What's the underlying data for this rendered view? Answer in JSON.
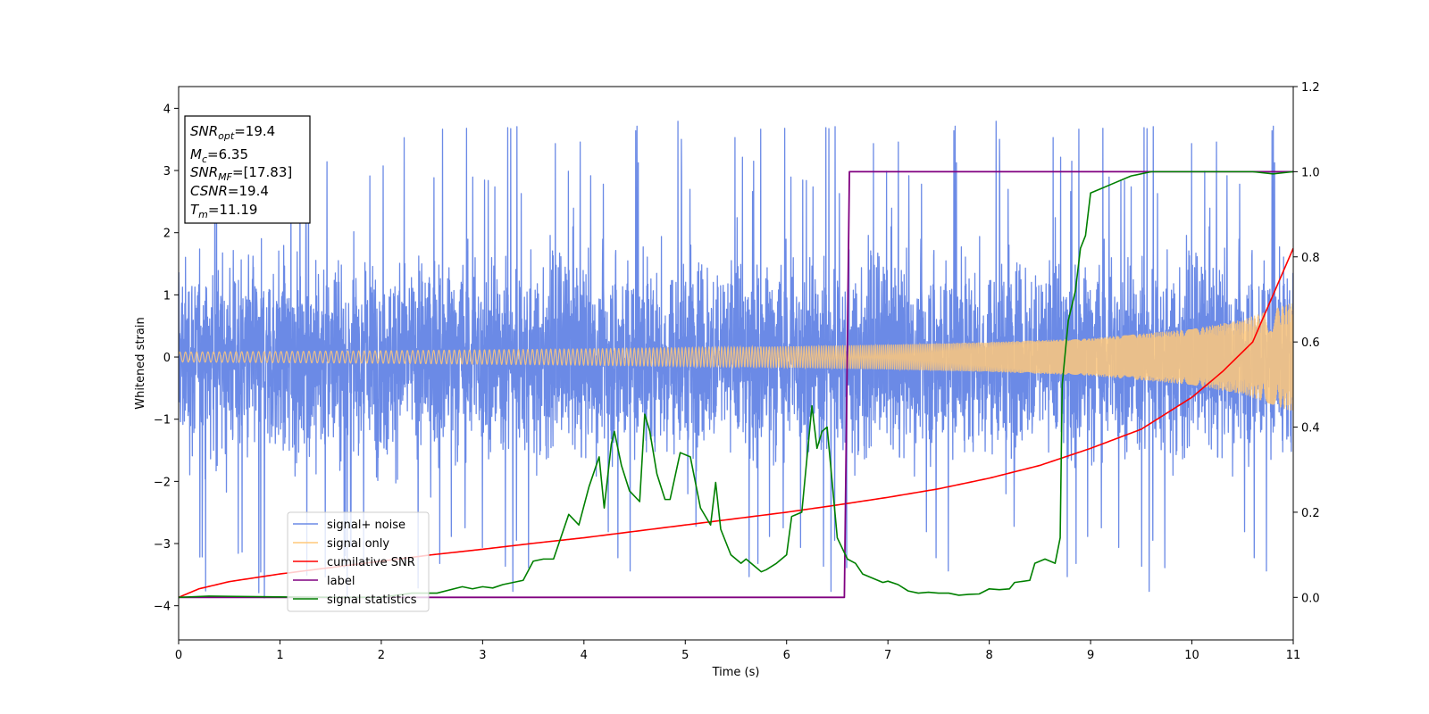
{
  "chart_data": {
    "type": "line",
    "xlabel": "Time (s)",
    "ylabel": "Whitened strain",
    "xlim": [
      0,
      11
    ],
    "ylim": [
      -4.55,
      4.35
    ],
    "y2lim": [
      -0.1,
      1.2
    ],
    "x_ticks": [
      "0",
      "1",
      "2",
      "3",
      "4",
      "5",
      "6",
      "7",
      "8",
      "9",
      "10",
      "11"
    ],
    "y_ticks": [
      "−4",
      "−3",
      "−2",
      "−1",
      "0",
      "1",
      "2",
      "3",
      "4"
    ],
    "y2_ticks": [
      "0.0",
      "0.2",
      "0.4",
      "0.6",
      "0.8",
      "1.0",
      "1.2"
    ],
    "grid": false,
    "legend_position": "lower-left",
    "annotation": {
      "lines": [
        {
          "label": "SNR",
          "sub": "opt",
          "value": "=19.4"
        },
        {
          "label": "M",
          "sub": "c",
          "value": "=6.35"
        },
        {
          "label": "SNR",
          "sub": "MF",
          "value": "=[17.83]"
        },
        {
          "label": "CSNR",
          "sub": "",
          "value": "=19.4"
        },
        {
          "label": "T",
          "sub": "m",
          "value": "=11.19"
        }
      ]
    },
    "series": [
      {
        "name": "signal+ noise",
        "color": "#6b8ae6",
        "axis": "left",
        "sampling": "noise",
        "description_values": {
          "typical_range": [
            -2.2,
            2.3
          ],
          "spike_max": 3.95,
          "spike_min": -4.15
        }
      },
      {
        "name": "signal only",
        "color": "#ffc87a",
        "axis": "left",
        "sampling": "chirp",
        "amplitude_envelope": {
          "x": [
            0,
            2,
            4,
            6,
            7,
            8,
            9,
            10,
            10.5,
            11
          ],
          "amp": [
            0.08,
            0.1,
            0.13,
            0.17,
            0.2,
            0.24,
            0.3,
            0.45,
            0.6,
            0.88
          ]
        }
      },
      {
        "name": "cumilative SNR",
        "color": "#ff0000",
        "axis": "right",
        "x": [
          0,
          0.2,
          0.5,
          1,
          1.5,
          2,
          2.5,
          3,
          3.5,
          4,
          4.5,
          5,
          5.5,
          6,
          6.5,
          7,
          7.5,
          8,
          8.5,
          9,
          9.5,
          10,
          10.3,
          10.6,
          11
        ],
        "y": [
          0.0,
          0.02,
          0.037,
          0.055,
          0.07,
          0.085,
          0.1,
          0.113,
          0.127,
          0.14,
          0.155,
          0.17,
          0.185,
          0.2,
          0.217,
          0.235,
          0.255,
          0.28,
          0.31,
          0.35,
          0.395,
          0.47,
          0.53,
          0.6,
          0.82
        ]
      },
      {
        "name": "label",
        "color": "#800080",
        "axis": "right",
        "x": [
          0,
          6.57,
          6.62,
          11
        ],
        "y": [
          0,
          0,
          1,
          1
        ]
      },
      {
        "name": "signal statistics",
        "color": "#008000",
        "axis": "right",
        "x": [
          0,
          0.3,
          1,
          1.5,
          2,
          2.3,
          2.55,
          2.8,
          2.9,
          3.0,
          3.1,
          3.2,
          3.3,
          3.4,
          3.5,
          3.6,
          3.7,
          3.8,
          3.85,
          3.95,
          4.05,
          4.15,
          4.2,
          4.27,
          4.3,
          4.37,
          4.45,
          4.55,
          4.6,
          4.65,
          4.72,
          4.8,
          4.85,
          4.95,
          5.05,
          5.15,
          5.25,
          5.3,
          5.35,
          5.45,
          5.55,
          5.6,
          5.7,
          5.75,
          5.8,
          5.9,
          6.0,
          6.05,
          6.15,
          6.25,
          6.3,
          6.35,
          6.4,
          6.5,
          6.6,
          6.68,
          6.75,
          6.85,
          6.95,
          7.0,
          7.1,
          7.2,
          7.3,
          7.4,
          7.5,
          7.6,
          7.7,
          7.8,
          7.9,
          8.0,
          8.1,
          8.2,
          8.25,
          8.4,
          8.45,
          8.55,
          8.65,
          8.7,
          8.72,
          8.78,
          8.85,
          8.9,
          8.95,
          9.0,
          9.1,
          9.2,
          9.4,
          9.6,
          9.8,
          10.0,
          10.2,
          10.4,
          10.6,
          10.8,
          11
        ],
        "y": [
          0,
          0.003,
          0.001,
          0.0,
          0.0,
          0.01,
          0.01,
          0.025,
          0.02,
          0.025,
          0.022,
          0.03,
          0.035,
          0.04,
          0.085,
          0.09,
          0.09,
          0.16,
          0.195,
          0.17,
          0.26,
          0.33,
          0.21,
          0.36,
          0.39,
          0.31,
          0.25,
          0.225,
          0.43,
          0.39,
          0.29,
          0.23,
          0.23,
          0.34,
          0.33,
          0.21,
          0.17,
          0.27,
          0.16,
          0.1,
          0.08,
          0.09,
          0.07,
          0.06,
          0.065,
          0.08,
          0.1,
          0.19,
          0.2,
          0.45,
          0.35,
          0.39,
          0.4,
          0.14,
          0.09,
          0.08,
          0.055,
          0.045,
          0.035,
          0.038,
          0.03,
          0.015,
          0.01,
          0.012,
          0.01,
          0.01,
          0.005,
          0.007,
          0.008,
          0.02,
          0.018,
          0.02,
          0.035,
          0.04,
          0.08,
          0.09,
          0.08,
          0.14,
          0.5,
          0.65,
          0.72,
          0.82,
          0.85,
          0.95,
          0.96,
          0.97,
          0.99,
          1.0,
          1.0,
          1.0,
          1.0,
          1.0,
          1.0,
          0.995,
          1.0
        ]
      }
    ]
  }
}
